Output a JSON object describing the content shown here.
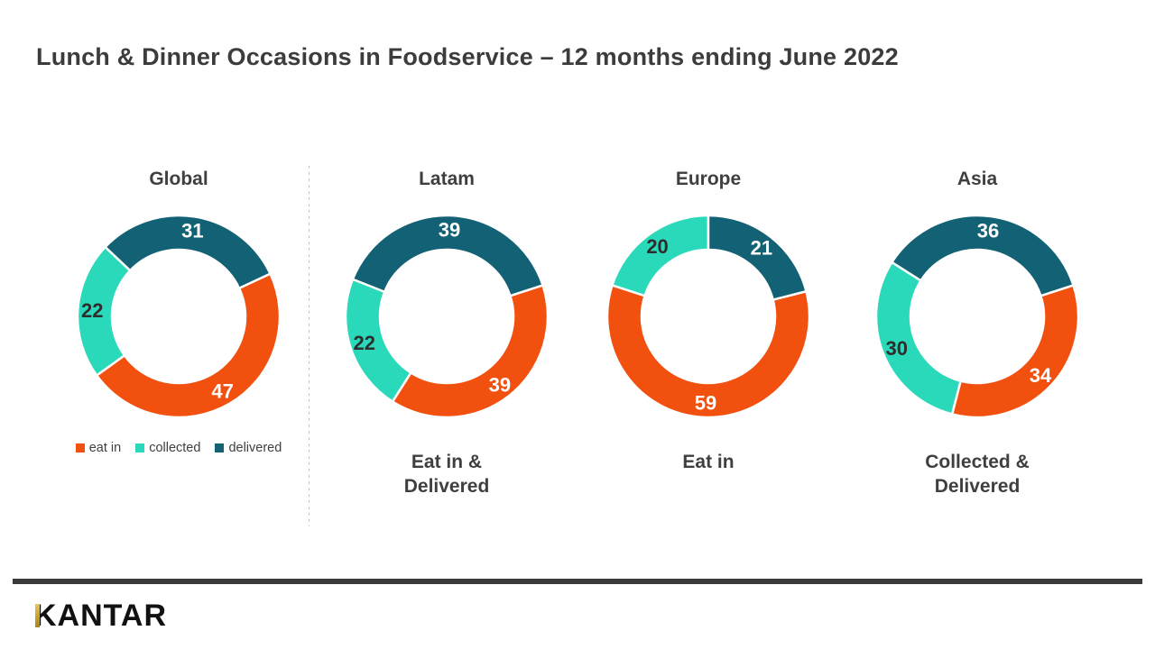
{
  "title": "Lunch & Dinner Occasions in Foodservice – 12 months ending June 2022",
  "legend": {
    "items": [
      {
        "label": "eat in",
        "color": "#f2500f"
      },
      {
        "label": "collected",
        "color": "#29d9b9"
      },
      {
        "label": "delivered",
        "color": "#136175"
      }
    ]
  },
  "chart_data": [
    {
      "type": "donut",
      "region": "Global",
      "categories": [
        "eat in",
        "collected",
        "delivered"
      ],
      "values": [
        47,
        22,
        31
      ],
      "colors": [
        "#f2500f",
        "#29d9b9",
        "#136175"
      ],
      "label_colors": [
        "#ffffff",
        "#2d2d2d",
        "#ffffff"
      ],
      "start_angle": 65,
      "sublabel_lines": []
    },
    {
      "type": "donut",
      "region": "Latam",
      "categories": [
        "eat in",
        "collected",
        "delivered"
      ],
      "values": [
        39,
        22,
        39
      ],
      "colors": [
        "#f2500f",
        "#29d9b9",
        "#136175"
      ],
      "label_colors": [
        "#ffffff",
        "#2d2d2d",
        "#ffffff"
      ],
      "start_angle": 72,
      "sublabel_lines": [
        "Eat in &",
        "Delivered"
      ]
    },
    {
      "type": "donut",
      "region": "Europe",
      "categories": [
        "eat in",
        "collected",
        "delivered"
      ],
      "values": [
        59,
        20,
        21
      ],
      "colors": [
        "#f2500f",
        "#29d9b9",
        "#136175"
      ],
      "label_colors": [
        "#ffffff",
        "#2d2d2d",
        "#ffffff"
      ],
      "start_angle": 75.6,
      "sublabel_lines": [
        "Eat in"
      ]
    },
    {
      "type": "donut",
      "region": "Asia",
      "categories": [
        "eat in",
        "collected",
        "delivered"
      ],
      "values": [
        34,
        30,
        36
      ],
      "colors": [
        "#f2500f",
        "#29d9b9",
        "#136175"
      ],
      "label_colors": [
        "#ffffff",
        "#2d2d2d",
        "#ffffff"
      ],
      "start_angle": 72,
      "sublabel_lines": [
        "Collected &",
        "Delivered"
      ]
    }
  ],
  "footer": {
    "logo": "KANTAR",
    "logo_accent_color": "#c9a227",
    "rule_color": "#3b3b3b"
  }
}
